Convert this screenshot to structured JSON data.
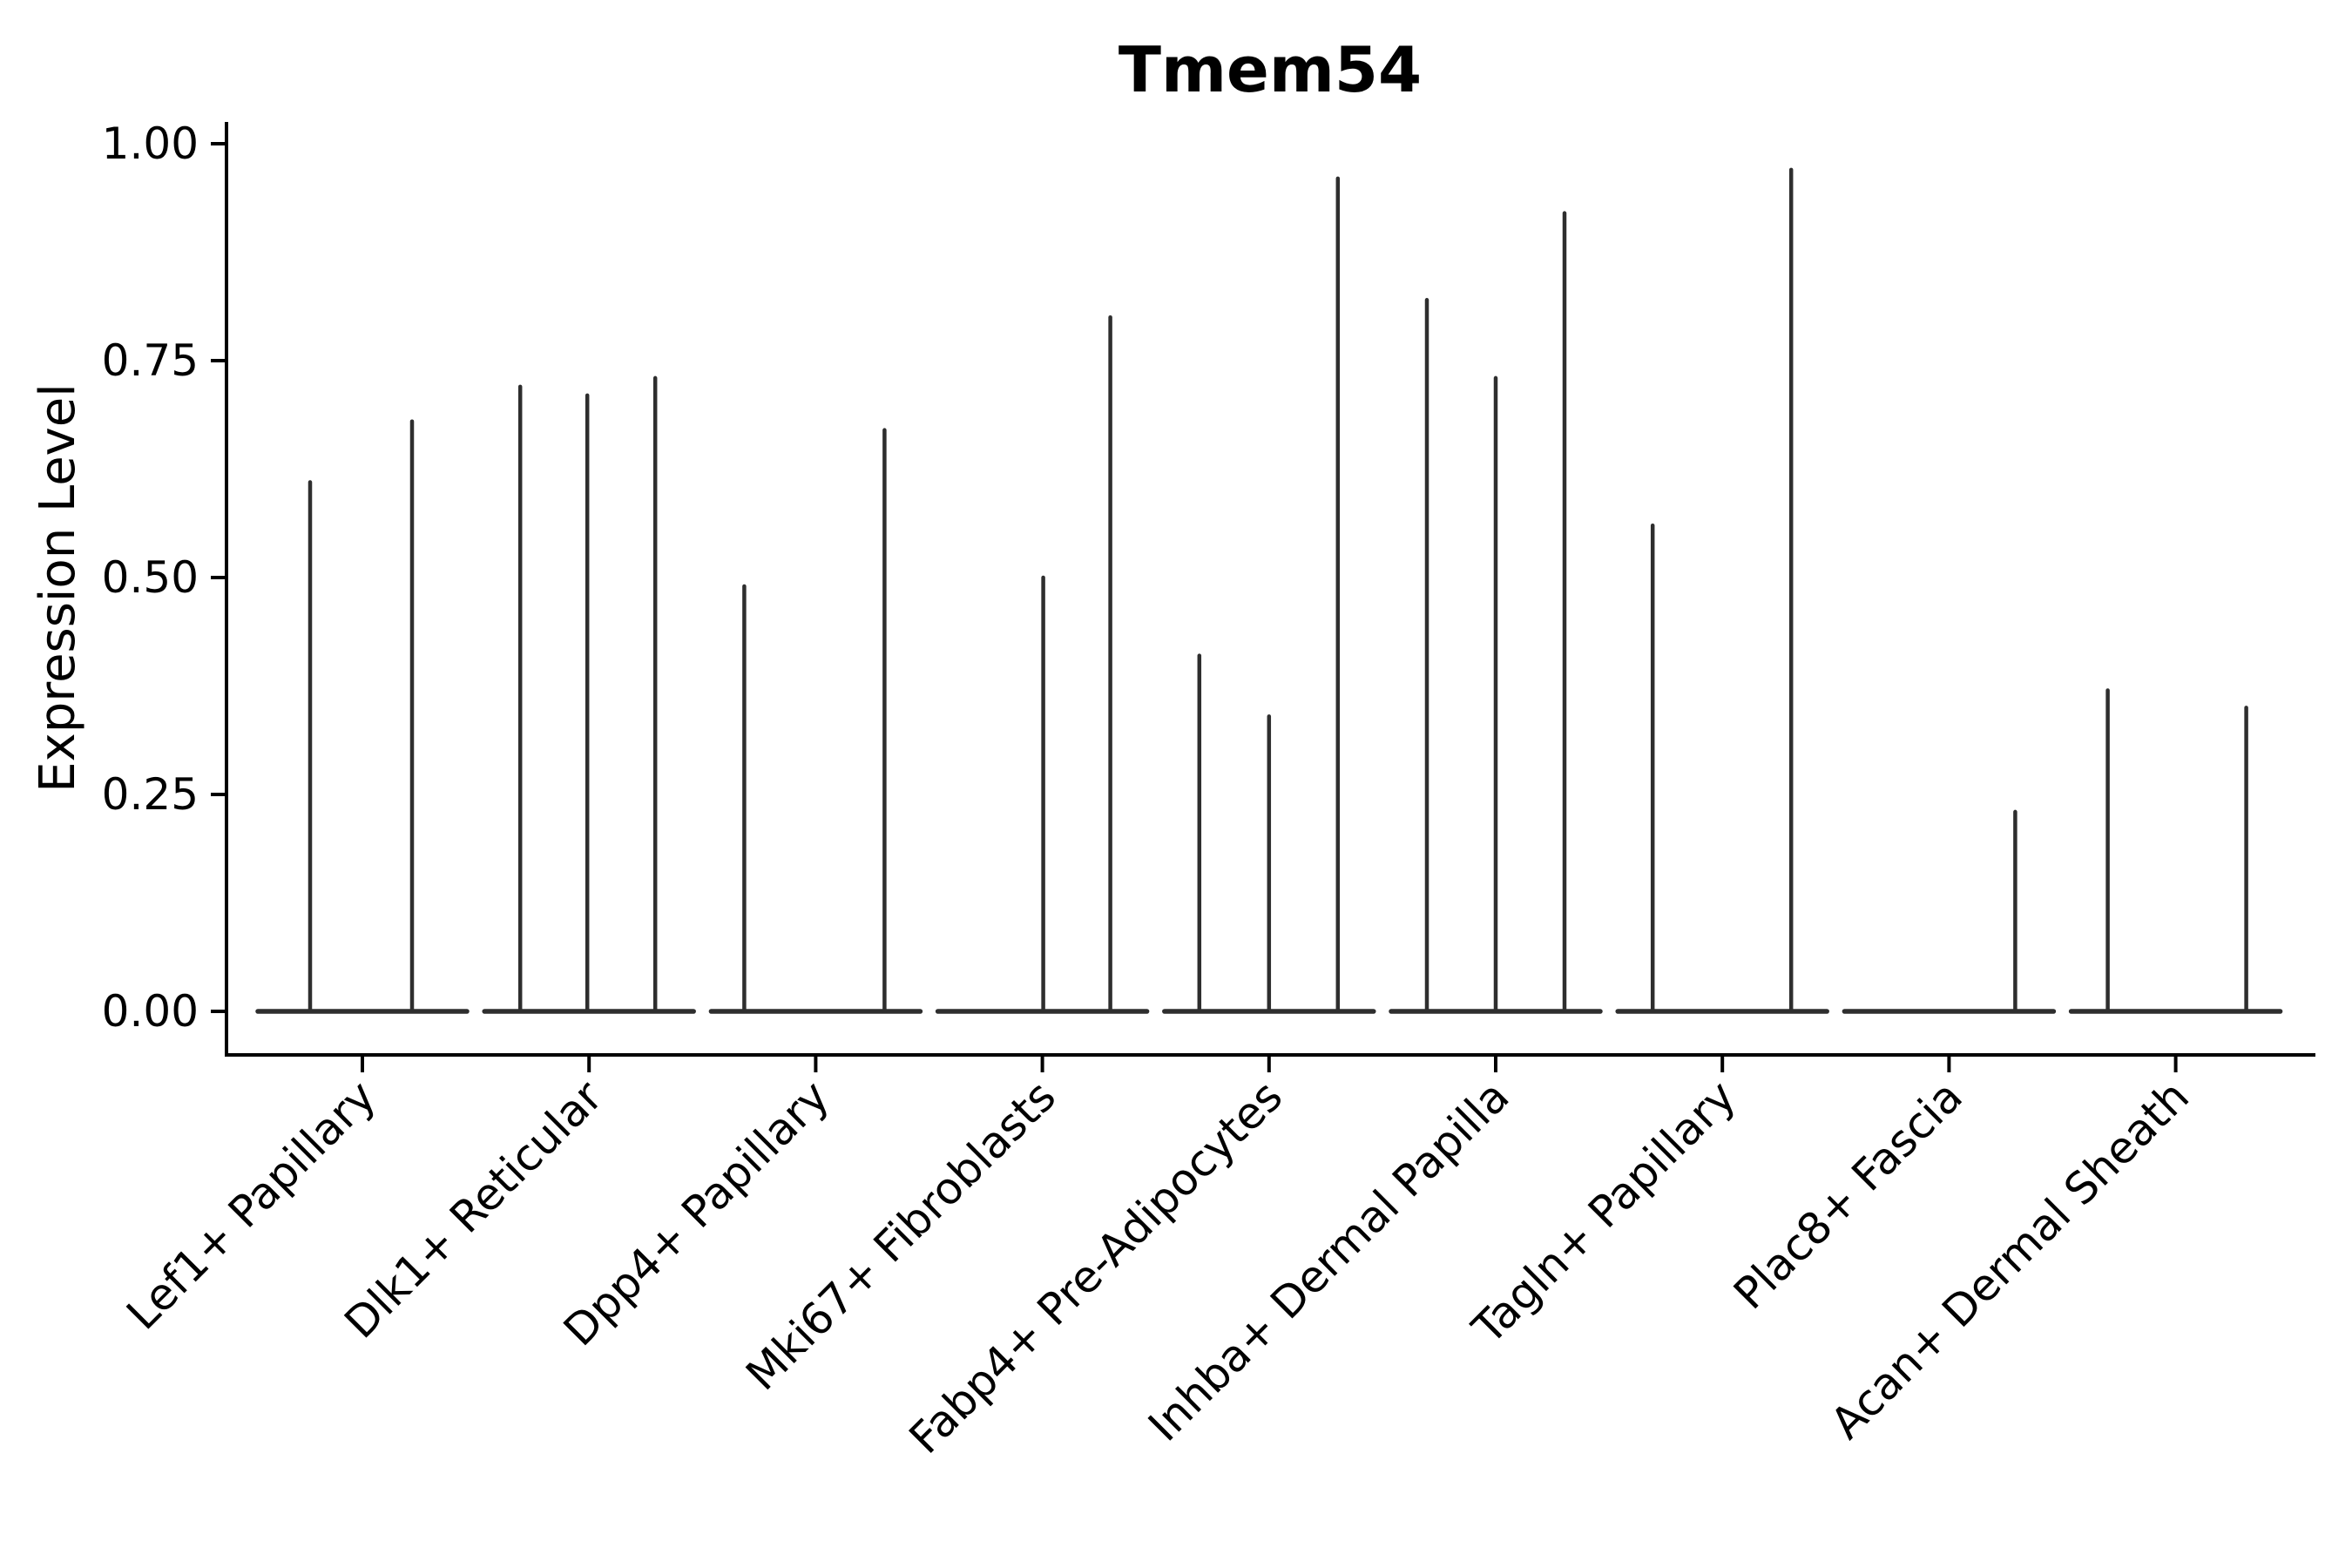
{
  "chart_data": {
    "type": "violin",
    "title": "Tmem54",
    "xlabel": "",
    "ylabel": "Expression Level",
    "ylim": [
      0,
      1
    ],
    "yticks": [
      {
        "value": 0.0,
        "label": "0.00"
      },
      {
        "value": 0.25,
        "label": "0.25"
      },
      {
        "value": 0.5,
        "label": "0.50"
      },
      {
        "value": 0.75,
        "label": "0.75"
      },
      {
        "value": 1.0,
        "label": "1.00"
      }
    ],
    "categories": [
      "Lef1+ Papillary",
      "Dlk1+ Reticular",
      "Dpp4+ Papillary",
      "Mki67+ Fibroblasts",
      "Fabp4+ Pre-Adipocytes",
      "Inhba+ Dermal Papilla",
      "Tagln+ Papillary",
      "Plac8+ Fascia",
      "Acan+ Dermal Sheath"
    ],
    "groups": [
      {
        "category": "Lef1+ Papillary",
        "spikes": [
          {
            "dx": -60,
            "peak": 0.61
          },
          {
            "dx": 57,
            "peak": 0.68
          }
        ]
      },
      {
        "category": "Dlk1+ Reticular",
        "spikes": [
          {
            "dx": -79,
            "peak": 0.72
          },
          {
            "dx": -2,
            "peak": 0.71
          },
          {
            "dx": 76,
            "peak": 0.73
          }
        ]
      },
      {
        "category": "Dpp4+ Papillary",
        "spikes": [
          {
            "dx": -82,
            "peak": 0.49
          },
          {
            "dx": 79,
            "peak": 0.67
          }
        ]
      },
      {
        "category": "Mki67+ Fibroblasts",
        "spikes": [
          {
            "dx": 1,
            "peak": 0.5
          },
          {
            "dx": 78,
            "peak": 0.8
          }
        ]
      },
      {
        "category": "Fabp4+ Pre-Adipocytes",
        "spikes": [
          {
            "dx": -80,
            "peak": 0.41
          },
          {
            "dx": 0,
            "peak": 0.34
          },
          {
            "dx": 79,
            "peak": 0.96
          }
        ]
      },
      {
        "category": "Inhba+ Dermal Papilla",
        "spikes": [
          {
            "dx": -79,
            "peak": 0.82
          },
          {
            "dx": 0,
            "peak": 0.73
          },
          {
            "dx": 79,
            "peak": 0.92
          }
        ]
      },
      {
        "category": "Tagln+ Papillary",
        "spikes": [
          {
            "dx": -80,
            "peak": 0.56
          },
          {
            "dx": 79,
            "peak": 0.97
          }
        ]
      },
      {
        "category": "Plac8+ Fascia",
        "spikes": [
          {
            "dx": 76,
            "peak": 0.23
          }
        ]
      },
      {
        "category": "Acan+ Dermal Sheath",
        "spikes": [
          {
            "dx": -78,
            "peak": 0.37
          },
          {
            "dx": 81,
            "peak": 0.35
          }
        ]
      }
    ],
    "style": {
      "violin_color": "#2e2e2e",
      "axis_color": "#000000",
      "background": "#ffffff",
      "grid": false,
      "legend": "none",
      "x_tick_rotation_deg": 45
    }
  }
}
